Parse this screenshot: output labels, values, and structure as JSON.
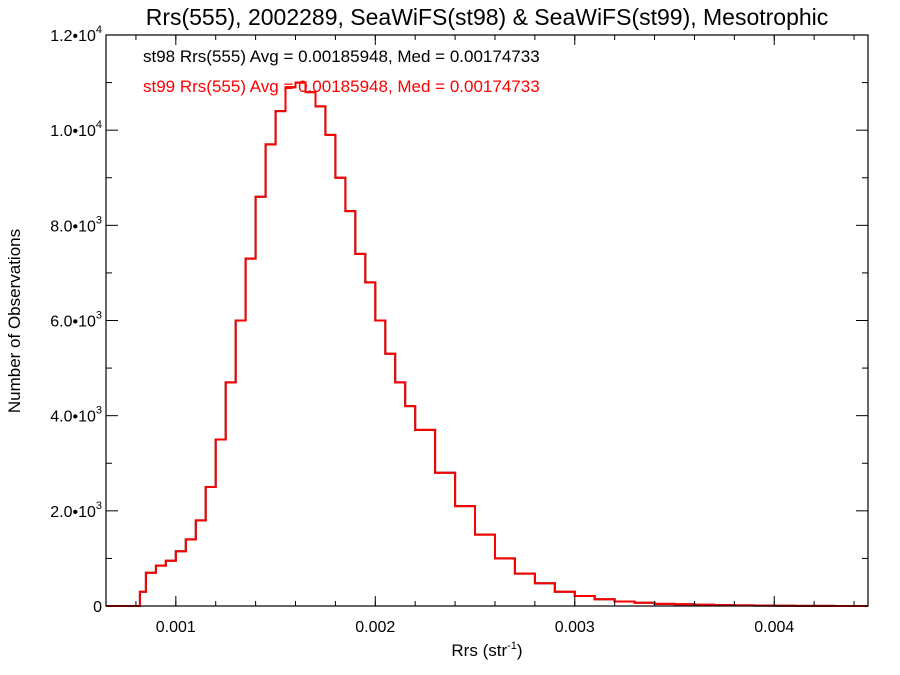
{
  "chart_data": {
    "type": "histogram",
    "title": "Rrs(555), 2002289, SeaWiFS(st98) & SeaWiFS(st99), Mesotrophic",
    "xlabel_base": "Rrs (str",
    "xlabel_sup": "-1",
    "xlabel_end": ")",
    "ylabel": "Number of Observations",
    "xlim": [
      0.00065,
      0.00447
    ],
    "ylim": [
      0,
      12000
    ],
    "grid": false,
    "x_ticks": [
      {
        "value": 0.001,
        "label": "0.001"
      },
      {
        "value": 0.002,
        "label": "0.002"
      },
      {
        "value": 0.003,
        "label": "0.003"
      },
      {
        "value": 0.004,
        "label": "0.004"
      }
    ],
    "y_ticks": [
      {
        "value": 0,
        "mantissa": "0",
        "exp": ""
      },
      {
        "value": 2000,
        "mantissa": "2.0•10",
        "exp": "3"
      },
      {
        "value": 4000,
        "mantissa": "4.0•10",
        "exp": "3"
      },
      {
        "value": 6000,
        "mantissa": "6.0•10",
        "exp": "3"
      },
      {
        "value": 8000,
        "mantissa": "8.0•10",
        "exp": "3"
      },
      {
        "value": 10000,
        "mantissa": "1.0•10",
        "exp": "4"
      },
      {
        "value": 12000,
        "mantissa": "1.2•10",
        "exp": "4"
      }
    ],
    "annotations": [
      {
        "text": "st98 Rrs(555) Avg = 0.00185948, Med = 0.00174733",
        "color": "#000000"
      },
      {
        "text": "st99 Rrs(555) Avg = 0.00185948, Med = 0.00174733",
        "color": "#ff0000"
      }
    ],
    "series": [
      {
        "color": "#000000",
        "x": [
          0.00065,
          0.0007,
          0.00075,
          0.0008,
          0.00082,
          0.00085,
          0.0009,
          0.00095,
          0.001,
          0.00105,
          0.0011,
          0.00115,
          0.0012,
          0.00125,
          0.0013,
          0.00135,
          0.0014,
          0.00145,
          0.0015,
          0.00155,
          0.0016,
          0.00165,
          0.0017,
          0.00175,
          0.0018,
          0.00185,
          0.0019,
          0.00195,
          0.002,
          0.00205,
          0.0021,
          0.00215,
          0.0022,
          0.0023,
          0.0024,
          0.0025,
          0.0026,
          0.0027,
          0.0028,
          0.0029,
          0.003,
          0.0031,
          0.0032,
          0.0033,
          0.0034,
          0.0035,
          0.0036,
          0.0037,
          0.0038,
          0.0039,
          0.004,
          0.0041,
          0.0042,
          0.0043,
          0.0044,
          0.00447
        ],
        "y": [
          0,
          0,
          0,
          0,
          300,
          700,
          850,
          950,
          1150,
          1400,
          1800,
          2500,
          3500,
          4700,
          6000,
          7300,
          8600,
          9700,
          10400,
          10900,
          11000,
          10800,
          10500,
          9900,
          9000,
          8300,
          7400,
          6800,
          6000,
          5300,
          4700,
          4200,
          3700,
          2800,
          2100,
          1500,
          1000,
          680,
          480,
          300,
          210,
          140,
          95,
          70,
          45,
          35,
          25,
          18,
          12,
          8,
          5,
          3,
          2,
          1,
          0,
          0
        ]
      },
      {
        "color": "#ff0000",
        "x": [
          0.00065,
          0.0007,
          0.00075,
          0.0008,
          0.00082,
          0.00085,
          0.0009,
          0.00095,
          0.001,
          0.00105,
          0.0011,
          0.00115,
          0.0012,
          0.00125,
          0.0013,
          0.00135,
          0.0014,
          0.00145,
          0.0015,
          0.00155,
          0.0016,
          0.00165,
          0.0017,
          0.00175,
          0.0018,
          0.00185,
          0.0019,
          0.00195,
          0.002,
          0.00205,
          0.0021,
          0.00215,
          0.0022,
          0.0023,
          0.0024,
          0.0025,
          0.0026,
          0.0027,
          0.0028,
          0.0029,
          0.003,
          0.0031,
          0.0032,
          0.0033,
          0.0034,
          0.0035,
          0.0036,
          0.0037,
          0.0038,
          0.0039,
          0.004,
          0.0041,
          0.0042,
          0.0043,
          0.0044,
          0.00447
        ],
        "y": [
          0,
          0,
          0,
          0,
          300,
          700,
          850,
          950,
          1150,
          1400,
          1800,
          2500,
          3500,
          4700,
          6000,
          7300,
          8600,
          9700,
          10400,
          10900,
          11000,
          10800,
          10500,
          9900,
          9000,
          8300,
          7400,
          6800,
          6000,
          5300,
          4700,
          4200,
          3700,
          2800,
          2100,
          1500,
          1000,
          680,
          480,
          300,
          210,
          140,
          95,
          70,
          45,
          35,
          25,
          18,
          12,
          8,
          5,
          3,
          2,
          1,
          0,
          0
        ]
      }
    ]
  }
}
